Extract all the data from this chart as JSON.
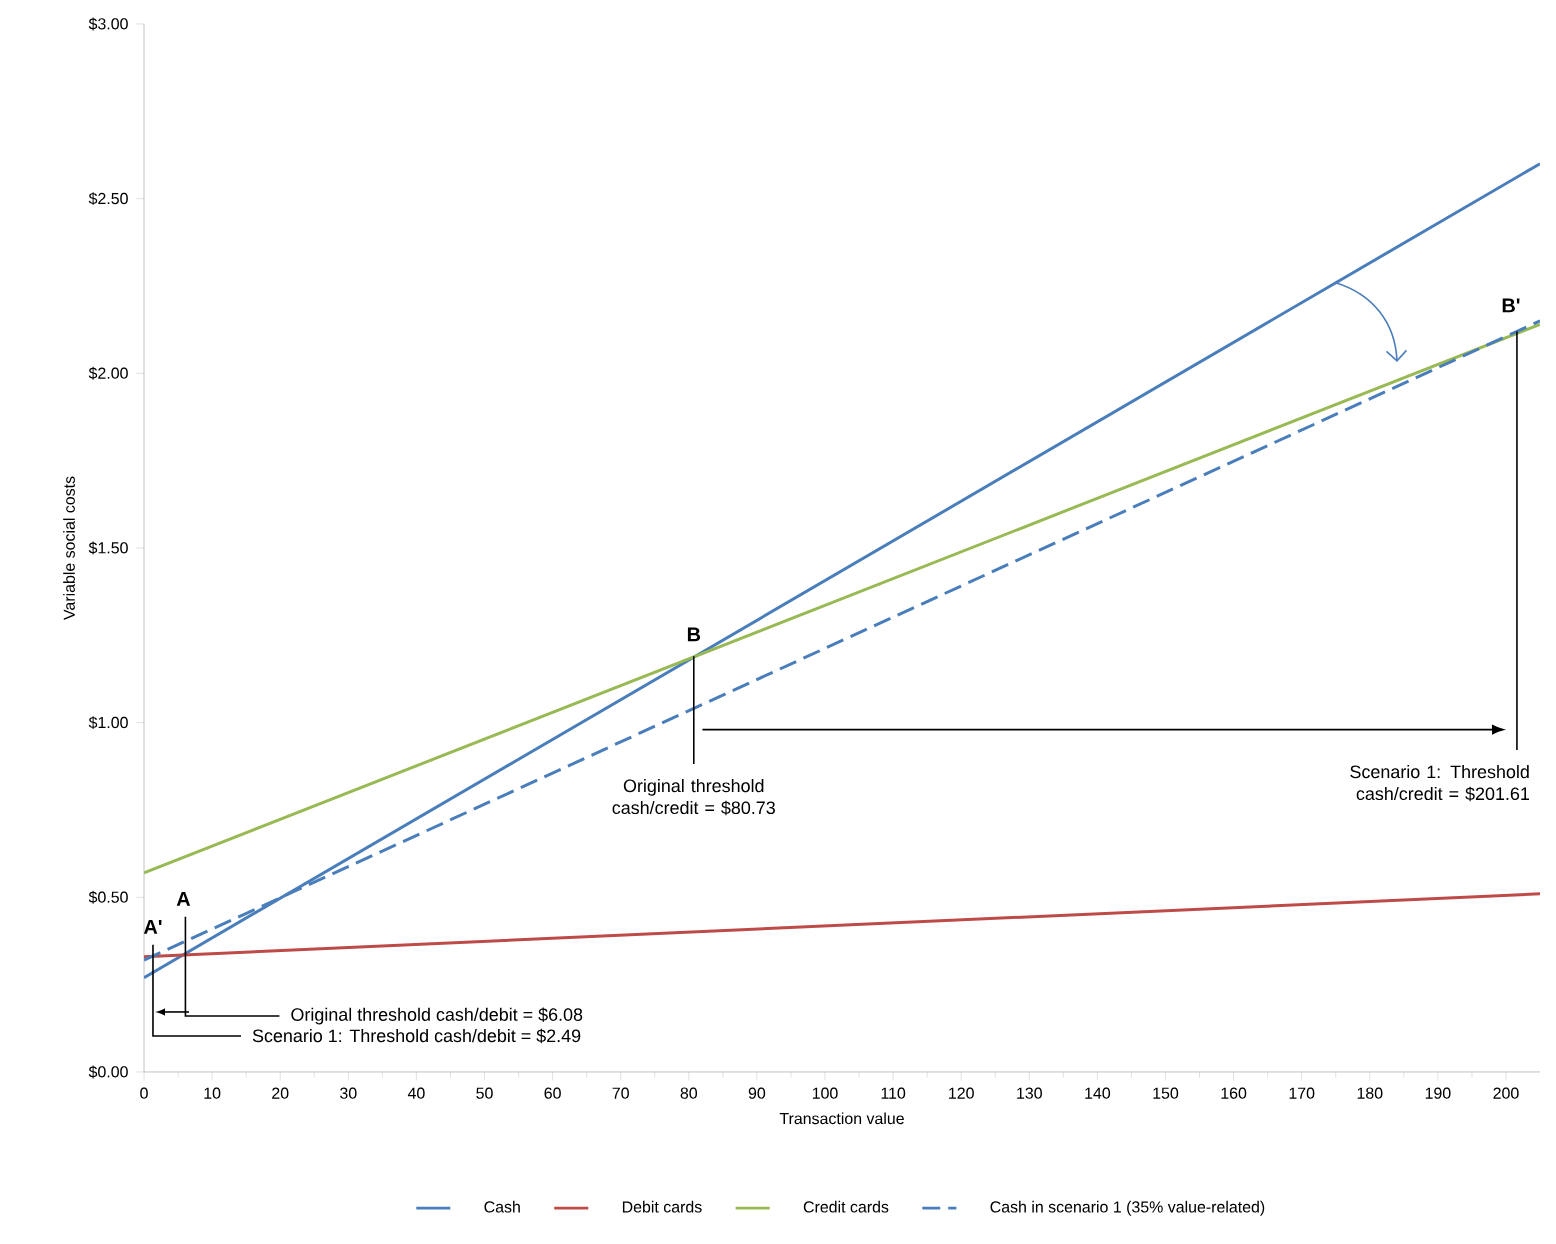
{
  "chart_data": {
    "type": "line",
    "xlabel": "Transaction value",
    "ylabel": "Variable social costs",
    "x": [
      0,
      205
    ],
    "series": [
      {
        "name": "Cash",
        "color": "#4a7ebb",
        "values": [
          0.27,
          2.6
        ],
        "line_style": "solid"
      },
      {
        "name": "Debit cards",
        "color": "#be4b48",
        "values": [
          0.33,
          0.51
        ],
        "line_style": "solid"
      },
      {
        "name": "Credit cards",
        "color": "#98b954",
        "values": [
          0.57,
          2.14
        ],
        "line_style": "solid"
      },
      {
        "name": "Cash in scenario 1 (35% value-related)",
        "color": "#4a7ebb",
        "values": [
          0.32,
          2.15
        ],
        "line_style": "dashed"
      }
    ],
    "xlim": [
      0,
      205
    ],
    "xticks": [
      0,
      10,
      20,
      30,
      40,
      50,
      60,
      70,
      80,
      90,
      100,
      110,
      120,
      130,
      140,
      150,
      160,
      170,
      180,
      190,
      200
    ],
    "ylim": [
      0,
      3
    ],
    "yticks": [
      {
        "value": 0,
        "label": "$0.00"
      },
      {
        "value": 0.5,
        "label": "$0.50"
      },
      {
        "value": 1,
        "label": "$1.00"
      },
      {
        "value": 1.5,
        "label": "$1.50"
      },
      {
        "value": 2,
        "label": "$2.00"
      },
      {
        "value": 2.5,
        "label": "$2.50"
      },
      {
        "value": 3,
        "label": "$3.00"
      }
    ],
    "grid": false,
    "legend": "bottom",
    "marker": "none",
    "annotations": [
      {
        "text": "A'",
        "x": 2.49,
        "y": 0.33
      },
      {
        "text": "A",
        "x": 6.08,
        "y": 0.33
      },
      {
        "text": "B",
        "x": 80.73,
        "y": 1.19
      },
      {
        "text": "B'",
        "x": 201.61,
        "y": 2.12
      },
      "Scenario 1: Threshold cash/debit = $2.49",
      "Original threshold cash/debit = $6.08",
      {
        "text": "Original threshold cash/credit = $80.73",
        "x": 80.73,
        "y": 1.19
      },
      {
        "text": "Scenario 1: Threshold cash/credit = $201.61",
        "x": 201.61,
        "y": 2.12
      }
    ]
  }
}
